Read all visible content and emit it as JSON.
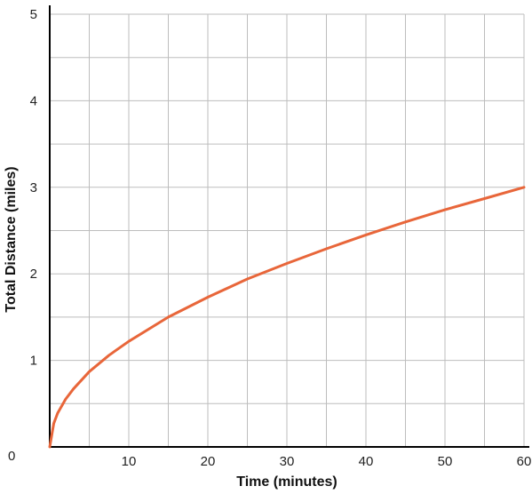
{
  "chart_data": {
    "type": "line",
    "title": "",
    "xlabel": "Time (minutes)",
    "ylabel": "Total Distance (miles)",
    "xlim": [
      0,
      60
    ],
    "ylim": [
      0,
      5
    ],
    "x_ticks": [
      10,
      20,
      30,
      40,
      50,
      60
    ],
    "y_ticks": [
      1,
      2,
      3,
      4,
      5
    ],
    "origin_label": "0",
    "grid": true,
    "minor_grid": true,
    "series": [
      {
        "color": "#e8663a",
        "x": [
          0,
          0.5,
          1,
          2,
          3,
          5,
          7.5,
          10,
          15,
          20,
          25,
          30,
          35,
          40,
          45,
          50,
          55,
          60
        ],
        "y": [
          0,
          0.27,
          0.39,
          0.55,
          0.67,
          0.87,
          1.06,
          1.22,
          1.5,
          1.73,
          1.94,
          2.12,
          2.29,
          2.45,
          2.6,
          2.74,
          2.87,
          3.0
        ]
      }
    ]
  }
}
